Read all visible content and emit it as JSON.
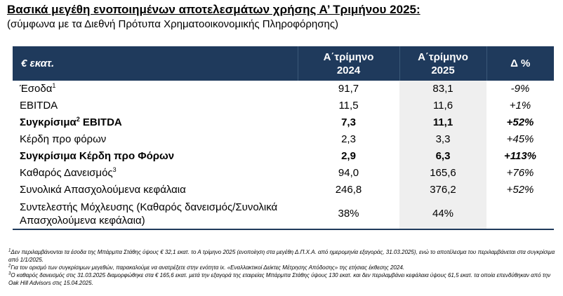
{
  "title": "Βασικά μεγέθη ενοποιημένων αποτελεσμάτων χρήσης Α’ Τριμήνου 2025:",
  "subtitle": "(σύμφωνα με τα Διεθνή Πρότυπα Χρηματοοικονομικής Πληροφόρησης)",
  "table": {
    "header": {
      "label": "€ εκατ.",
      "col1_line1": "Α΄τρίμηνο",
      "col1_line2": "2024",
      "col2_line1": "Α΄τρίμηνο",
      "col2_line2": "2025",
      "col3": "Δ %"
    },
    "rows": [
      {
        "label": "Έσοδα",
        "sup": "1",
        "v2024": "91,7",
        "v2025": "83,1",
        "delta": "-9%"
      },
      {
        "label": "EBITDA",
        "sup": "",
        "v2024": "11,5",
        "v2025": "11,6",
        "delta": "+1%"
      },
      {
        "label": "Συγκρίσιμα",
        "sup": "2",
        "label_suffix": " EBITDA",
        "v2024": "7,3",
        "v2025": "11,1",
        "delta": "+52%"
      },
      {
        "label": "Κέρδη προ φόρων",
        "sup": "",
        "v2024": "2,3",
        "v2025": "3,3",
        "delta": "+45%"
      },
      {
        "label": "Συγκρίσιμα Κέρδη προ Φόρων",
        "sup": "",
        "v2024": "2,9",
        "v2025": "6,3",
        "delta": "+113%"
      },
      {
        "label": "Καθαρός Δανεισμός",
        "sup": "3",
        "v2024": "94,0",
        "v2025": "165,6",
        "delta": "+76%"
      },
      {
        "label": "Συνολικά Απασχολούμενα κεφάλαια",
        "sup": "",
        "v2024": "246,8",
        "v2025": "376,2",
        "delta": "+52%"
      },
      {
        "label": "Συντελεστής Μόχλευσης (Καθαρός δανεισμός/Συνολικά Απασχολούμενα κεφάλαια)",
        "sup": "",
        "v2024": "38%",
        "v2025": "44%",
        "delta": ""
      }
    ]
  },
  "footnotes": [
    {
      "num": "1",
      "text": "Δεν περιλαμβάνονται τα έσοδα της Μπάρμπα Στάθης ύψους € 32,1 εκατ. το Α τρίμηνο 2025 (ενοποίηση στα μεγέθη Δ.Π.Χ.Α. από ημερομηνία εξαγοράς, 31.03.2025), ενώ το αποτέλεσμα του περιλαμβάνεται στα συγκρίσιμα από 1/1/2025."
    },
    {
      "num": "2",
      "text": "Για τον ορισμό των συγκρίσιμων μεγεθών, παρακαλούμε να ανατρέξετε στην ενότητα ix. «Εναλλακτικοί Δείκτες Μέτρησης Απόδοσης» της ετήσιας έκθεσης 2024."
    },
    {
      "num": "3",
      "text": "Ο καθαρός δανεισμός στις 31.03.2025 διαμορφώθηκε στα € 165,6 εκατ. μετά την εξαγορά της εταιρείας Μπάρμπα Στάθης ύψους 130 εκατ. και δεν περιλαμβάνει κεφάλαια ύψους 61,5 εκατ. τα οποία επενδύθηκαν από την Oak Hill Advisors στις 15.04.2025."
    }
  ]
}
